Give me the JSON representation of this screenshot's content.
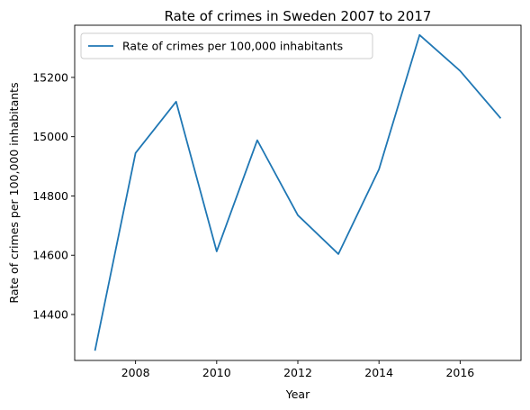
{
  "chart_data": {
    "type": "line",
    "title": "Rate of crimes in Sweden 2007 to 2017",
    "xlabel": "Year",
    "ylabel": "Rate of crimes per 100,000 inhabitants",
    "x": [
      2007,
      2008,
      2009,
      2010,
      2011,
      2012,
      2013,
      2014,
      2015,
      2016,
      2017
    ],
    "series": [
      {
        "name": "Rate of crimes per 100,000 inhabitants",
        "color": "#1f77b4",
        "values": [
          14278,
          14945,
          15118,
          14613,
          14988,
          14735,
          14604,
          14890,
          15343,
          15222,
          15062
        ]
      }
    ],
    "xlim": [
      2006.5,
      2017.5
    ],
    "ylim": [
      14245,
      15376
    ],
    "xticks": [
      2008,
      2010,
      2012,
      2014,
      2016
    ],
    "yticks": [
      14400,
      14600,
      14800,
      15000,
      15200
    ],
    "grid": false,
    "legend_position": "top-left"
  }
}
